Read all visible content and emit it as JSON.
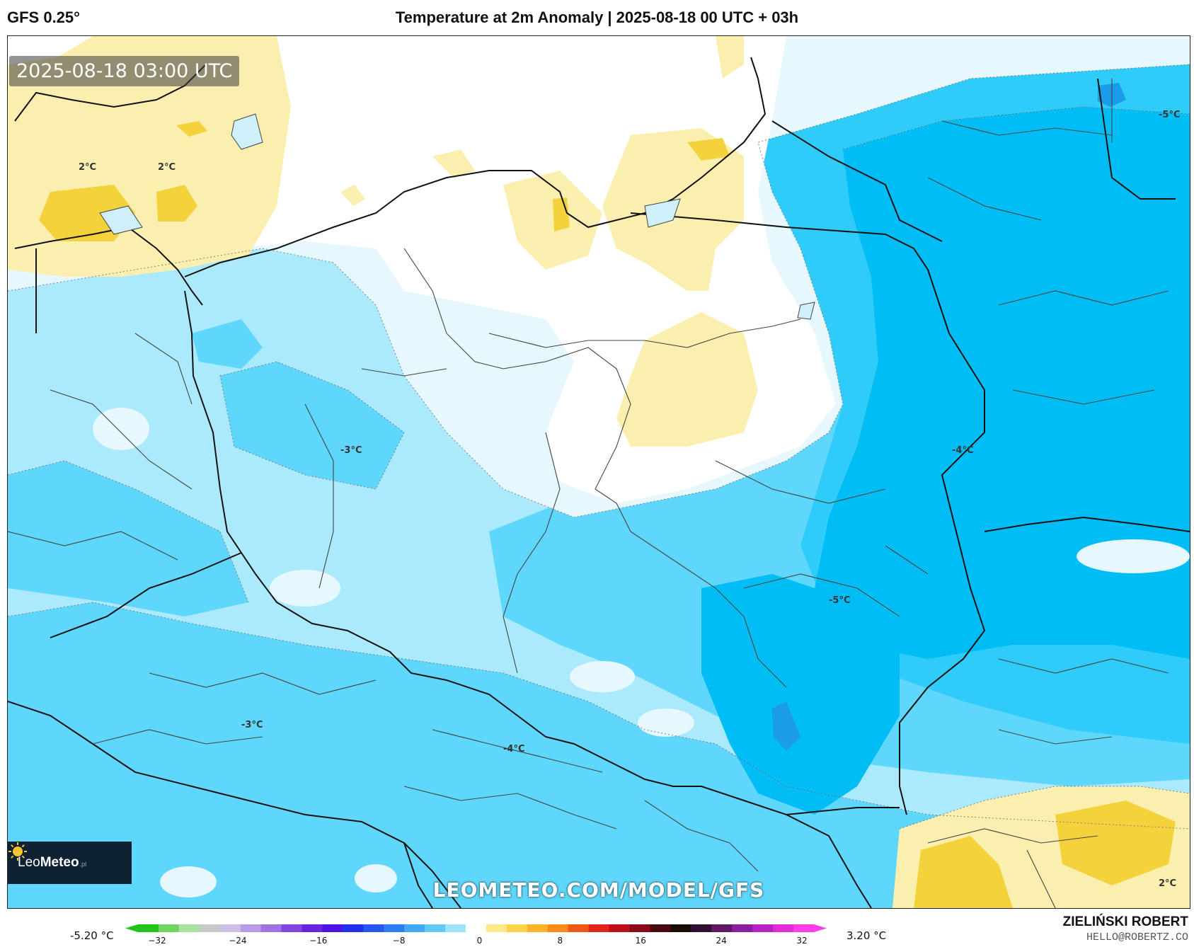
{
  "header": {
    "model": "GFS 0.25°",
    "title": "Temperature at 2m Anomaly | 2025-08-18 00 UTC + 03h"
  },
  "map": {
    "valid_time": "2025-08-18 03:00 UTC",
    "watermark": "LEOMETEO.COM/MODEL/GFS",
    "logo": {
      "name_regular": "Leo",
      "name_bold": "Meteo",
      "suffix": ".pl"
    },
    "contour_labels": [
      "2°C",
      "2°C",
      "-3°C",
      "-4°C",
      "-5°C",
      "-3°C",
      "-4°C",
      "-5°C",
      "2°C"
    ],
    "colors": {
      "warm_light": "#fbefb0",
      "warm": "#f8e27a",
      "warm_strong": "#f4d23c",
      "neutral": "#ffffff",
      "cool_pale": "#e6f7fd",
      "cool_light": "#aaeafc",
      "cool": "#5fd6fb",
      "cool_mid": "#2fcbf9",
      "cool_deep": "#00bdf6",
      "cool_darkest": "#1a9ce8"
    }
  },
  "colorbar": {
    "min_label": "-5.20 °C",
    "max_label": "3.20 °C",
    "ticks": [
      "−32",
      "−24",
      "−16",
      "−8",
      "0",
      "8",
      "16",
      "24",
      "32"
    ],
    "colors": [
      "#22c41c",
      "#6ed660",
      "#a8e2a0",
      "#c9c9c9",
      "#cfc0e8",
      "#b89ae6",
      "#a073e2",
      "#8047e0",
      "#6a24de",
      "#4a14e4",
      "#2430f0",
      "#2856f2",
      "#2e7cf4",
      "#40a8f6",
      "#62c8f8",
      "#9ee2fb",
      "#ffffff",
      "#ffe98a",
      "#ffd24a",
      "#ffb428",
      "#ff8a1a",
      "#f0581a",
      "#e0241a",
      "#c0101c",
      "#8a0a18",
      "#4a0a10",
      "#1a0a0a",
      "#301030",
      "#601866",
      "#8a1ea0",
      "#b822c4",
      "#e22ad6",
      "#ff3ce8"
    ]
  },
  "credit": {
    "name": "ZIELIŃSKI ROBERT",
    "email": "HELLO@ROBERTZ.CO"
  }
}
